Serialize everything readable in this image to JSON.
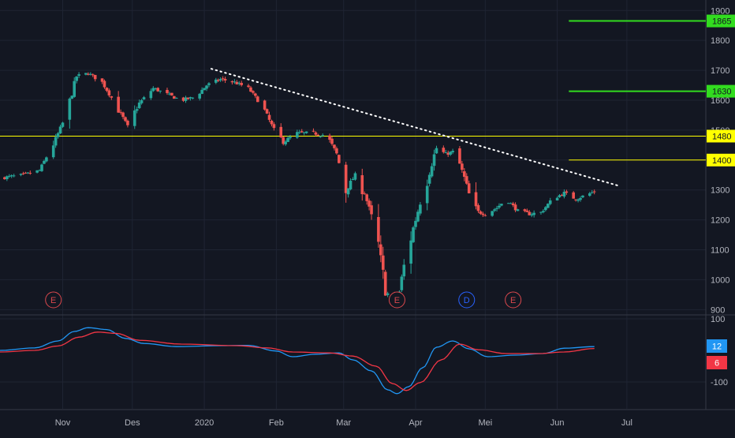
{
  "theme": {
    "background": "#131722",
    "grid": "#1f2433",
    "axis_text": "#b2b5be",
    "up": "#26a69a",
    "down": "#ef5350",
    "trendline": "#ffffff",
    "yellow": "#ffff00",
    "green": "#32dc1f",
    "macd_line": "#2196f3",
    "signal_line": "#f23645",
    "event_e": "#d9484d",
    "event_d": "#2962ff"
  },
  "chart_data": [
    {
      "type": "candlestick",
      "title": "",
      "ylim": [
        885,
        1935
      ],
      "yticks": [
        900,
        1000,
        1100,
        1200,
        1300,
        1400,
        1500,
        1600,
        1700,
        1800,
        1900
      ],
      "xticks": [
        {
          "label": "Nov",
          "date": "2019-11-01"
        },
        {
          "label": "Des",
          "date": "2019-12-01"
        },
        {
          "label": "2020",
          "date": "2020-01-01"
        },
        {
          "label": "Feb",
          "date": "2020-02-01"
        },
        {
          "label": "Mar",
          "date": "2020-03-01"
        },
        {
          "label": "Apr",
          "date": "2020-04-01"
        },
        {
          "label": "Mei",
          "date": "2020-05-01"
        },
        {
          "label": "Jun",
          "date": "2020-06-01"
        },
        {
          "label": "Jul",
          "date": "2020-07-01"
        }
      ],
      "xlim": [
        "2019-10-05",
        "2020-08-04"
      ],
      "close_path": [
        [
          "2019-10-05",
          1340
        ],
        [
          "2019-10-15",
          1350
        ],
        [
          "2019-10-22",
          1365
        ],
        [
          "2019-10-29",
          1470
        ],
        [
          "2019-11-03",
          1560
        ],
        [
          "2019-11-07",
          1680
        ],
        [
          "2019-11-12",
          1690
        ],
        [
          "2019-11-18",
          1660
        ],
        [
          "2019-11-25",
          1570
        ],
        [
          "2019-11-29",
          1510
        ],
        [
          "2019-12-04",
          1590
        ],
        [
          "2019-12-10",
          1640
        ],
        [
          "2019-12-16",
          1620
        ],
        [
          "2019-12-22",
          1600
        ],
        [
          "2019-12-28",
          1610
        ],
        [
          "2020-01-02",
          1650
        ],
        [
          "2020-01-08",
          1670
        ],
        [
          "2020-01-14",
          1660
        ],
        [
          "2020-01-20",
          1640
        ],
        [
          "2020-01-26",
          1580
        ],
        [
          "2020-01-31",
          1500
        ],
        [
          "2020-02-04",
          1460
        ],
        [
          "2020-02-10",
          1490
        ],
        [
          "2020-02-17",
          1490
        ],
        [
          "2020-02-23",
          1480
        ],
        [
          "2020-02-27",
          1420
        ],
        [
          "2020-03-02",
          1300
        ],
        [
          "2020-03-06",
          1350
        ],
        [
          "2020-03-10",
          1290
        ],
        [
          "2020-03-13",
          1210
        ],
        [
          "2020-03-16",
          1110
        ],
        [
          "2020-03-19",
          970
        ],
        [
          "2020-03-22",
          920
        ],
        [
          "2020-03-25",
          960
        ],
        [
          "2020-03-28",
          1090
        ],
        [
          "2020-04-01",
          1200
        ],
        [
          "2020-04-05",
          1320
        ],
        [
          "2020-04-10",
          1440
        ],
        [
          "2020-04-14",
          1420
        ],
        [
          "2020-04-18",
          1430
        ],
        [
          "2020-04-22",
          1340
        ],
        [
          "2020-04-26",
          1230
        ],
        [
          "2020-05-01",
          1220
        ],
        [
          "2020-05-06",
          1240
        ],
        [
          "2020-05-10",
          1270
        ],
        [
          "2020-05-15",
          1230
        ],
        [
          "2020-05-20",
          1220
        ],
        [
          "2020-05-25",
          1225
        ],
        [
          "2020-05-30",
          1270
        ],
        [
          "2020-06-04",
          1290
        ],
        [
          "2020-06-09",
          1270
        ],
        [
          "2020-06-14",
          1285
        ],
        [
          "2020-06-17",
          1295
        ]
      ],
      "last_date": "2020-06-17",
      "horizontal_lines": [
        {
          "value": 1480,
          "color": "yellow",
          "label": "1480",
          "span": "full"
        },
        {
          "value": 1400,
          "color": "yellow",
          "label": "1400",
          "from": "2020-06-06"
        },
        {
          "value": 1630,
          "color": "green",
          "label": "1630",
          "from": "2020-06-06"
        },
        {
          "value": 1865,
          "color": "green",
          "label": "1865",
          "from": "2020-06-06"
        }
      ],
      "trendline": {
        "from": [
          "2020-01-04",
          1705
        ],
        "to": [
          "2020-06-27",
          1315
        ],
        "style": "dotted"
      },
      "events": [
        {
          "label": "E",
          "date": "2019-10-28",
          "kind": "earnings"
        },
        {
          "label": "E",
          "date": "2020-03-24",
          "kind": "earnings"
        },
        {
          "label": "D",
          "date": "2020-04-23",
          "kind": "dividend"
        },
        {
          "label": "E",
          "date": "2020-05-13",
          "kind": "earnings"
        }
      ]
    },
    {
      "type": "line",
      "ylim": [
        -185,
        110
      ],
      "yticks": [
        100,
        -100
      ],
      "series": [
        {
          "name": "12",
          "color": "macd_line",
          "points": [
            [
              "2019-10-05",
              0
            ],
            [
              "2019-10-20",
              8
            ],
            [
              "2019-10-30",
              30
            ],
            [
              "2019-11-06",
              60
            ],
            [
              "2019-11-12",
              72
            ],
            [
              "2019-11-20",
              66
            ],
            [
              "2019-11-28",
              38
            ],
            [
              "2019-12-06",
              22
            ],
            [
              "2019-12-20",
              12
            ],
            [
              "2020-01-08",
              15
            ],
            [
              "2020-01-20",
              16
            ],
            [
              "2020-02-01",
              -2
            ],
            [
              "2020-02-08",
              -20
            ],
            [
              "2020-02-18",
              -12
            ],
            [
              "2020-02-28",
              -8
            ],
            [
              "2020-03-05",
              -30
            ],
            [
              "2020-03-13",
              -65
            ],
            [
              "2020-03-20",
              -125
            ],
            [
              "2020-03-24",
              -137
            ],
            [
              "2020-03-29",
              -115
            ],
            [
              "2020-04-04",
              -55
            ],
            [
              "2020-04-10",
              10
            ],
            [
              "2020-04-17",
              30
            ],
            [
              "2020-04-24",
              5
            ],
            [
              "2020-05-02",
              -20
            ],
            [
              "2020-05-14",
              -15
            ],
            [
              "2020-05-26",
              -10
            ],
            [
              "2020-06-04",
              7
            ],
            [
              "2020-06-17",
              12
            ]
          ]
        },
        {
          "name": "6",
          "color": "signal_line",
          "points": [
            [
              "2019-10-05",
              -5
            ],
            [
              "2019-10-20",
              0
            ],
            [
              "2019-10-30",
              14
            ],
            [
              "2019-11-08",
              42
            ],
            [
              "2019-11-16",
              58
            ],
            [
              "2019-11-24",
              54
            ],
            [
              "2019-12-04",
              32
            ],
            [
              "2019-12-22",
              20
            ],
            [
              "2020-01-15",
              15
            ],
            [
              "2020-01-28",
              8
            ],
            [
              "2020-02-08",
              -5
            ],
            [
              "2020-02-24",
              -8
            ],
            [
              "2020-03-05",
              -18
            ],
            [
              "2020-03-15",
              -50
            ],
            [
              "2020-03-22",
              -105
            ],
            [
              "2020-03-28",
              -127
            ],
            [
              "2020-04-03",
              -102
            ],
            [
              "2020-04-12",
              -30
            ],
            [
              "2020-04-20",
              20
            ],
            [
              "2020-04-28",
              2
            ],
            [
              "2020-05-10",
              -10
            ],
            [
              "2020-05-24",
              -10
            ],
            [
              "2020-06-04",
              -5
            ],
            [
              "2020-06-17",
              6
            ]
          ]
        }
      ],
      "last_labels": [
        {
          "text": "12",
          "color": "macd_line"
        },
        {
          "text": "6",
          "color": "signal_line"
        }
      ]
    }
  ]
}
